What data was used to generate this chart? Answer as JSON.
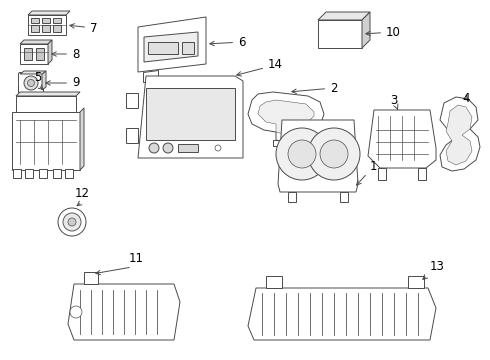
{
  "bg_color": "#ffffff",
  "line_color": "#4a4a4a",
  "text_color": "#000000",
  "fig_width": 4.9,
  "fig_height": 3.6,
  "dpi": 100,
  "lw": 0.7,
  "label_fontsize": 8.5
}
